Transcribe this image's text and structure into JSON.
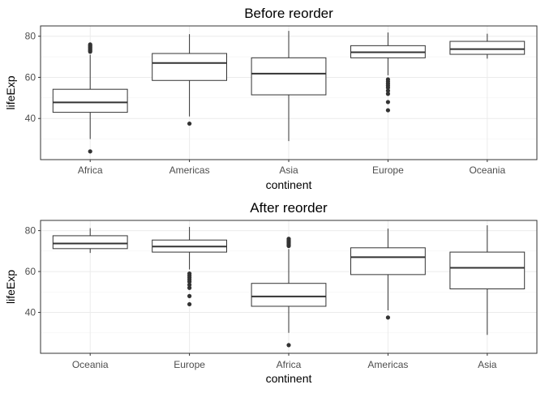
{
  "chart_data": [
    {
      "type": "boxplot",
      "title": "Before reorder",
      "xlabel": "continent",
      "ylabel": "lifeExp",
      "ylim": [
        20,
        85
      ],
      "yticks": [
        40,
        60,
        80
      ],
      "grid": true,
      "categories": [
        "Africa",
        "Americas",
        "Asia",
        "Europe",
        "Oceania"
      ],
      "boxes": [
        {
          "category": "Africa",
          "low": 30,
          "q1": 43,
          "median": 47.8,
          "q3": 54.2,
          "high": 71,
          "outliers": [
            24,
            72.5,
            73,
            73.5,
            74,
            74.5,
            75,
            75.5,
            76
          ]
        },
        {
          "category": "Americas",
          "low": 41,
          "q1": 58.5,
          "median": 67,
          "q3": 71.6,
          "high": 81,
          "outliers": [
            37.5
          ]
        },
        {
          "category": "Asia",
          "low": 29,
          "q1": 51.5,
          "median": 61.8,
          "q3": 69.5,
          "high": 82.6,
          "outliers": []
        },
        {
          "category": "Europe",
          "low": 61,
          "q1": 69.5,
          "median": 72.2,
          "q3": 75.4,
          "high": 81.8,
          "outliers": [
            44,
            48,
            52,
            53.5,
            55,
            56,
            57,
            58,
            59
          ]
        },
        {
          "category": "Oceania",
          "low": 69.1,
          "q1": 71.2,
          "median": 73.7,
          "q3": 77.5,
          "high": 81.2,
          "outliers": []
        }
      ]
    },
    {
      "type": "boxplot",
      "title": "After reorder",
      "xlabel": "continent",
      "ylabel": "lifeExp",
      "ylim": [
        20,
        85
      ],
      "yticks": [
        40,
        60,
        80
      ],
      "grid": true,
      "categories": [
        "Oceania",
        "Europe",
        "Africa",
        "Americas",
        "Asia"
      ],
      "boxes": [
        {
          "category": "Oceania",
          "low": 69.1,
          "q1": 71.2,
          "median": 73.7,
          "q3": 77.5,
          "high": 81.2,
          "outliers": []
        },
        {
          "category": "Europe",
          "low": 61,
          "q1": 69.5,
          "median": 72.2,
          "q3": 75.4,
          "high": 81.8,
          "outliers": [
            44,
            48,
            52,
            53.5,
            55,
            56,
            57,
            58,
            59
          ]
        },
        {
          "category": "Africa",
          "low": 30,
          "q1": 43,
          "median": 47.8,
          "q3": 54.2,
          "high": 71,
          "outliers": [
            24,
            72.5,
            73,
            73.5,
            74,
            74.5,
            75,
            75.5,
            76
          ]
        },
        {
          "category": "Americas",
          "low": 41,
          "q1": 58.5,
          "median": 67,
          "q3": 71.6,
          "high": 81,
          "outliers": [
            37.5
          ]
        },
        {
          "category": "Asia",
          "low": 29,
          "q1": 51.5,
          "median": 61.8,
          "q3": 69.5,
          "high": 82.6,
          "outliers": []
        }
      ]
    }
  ]
}
